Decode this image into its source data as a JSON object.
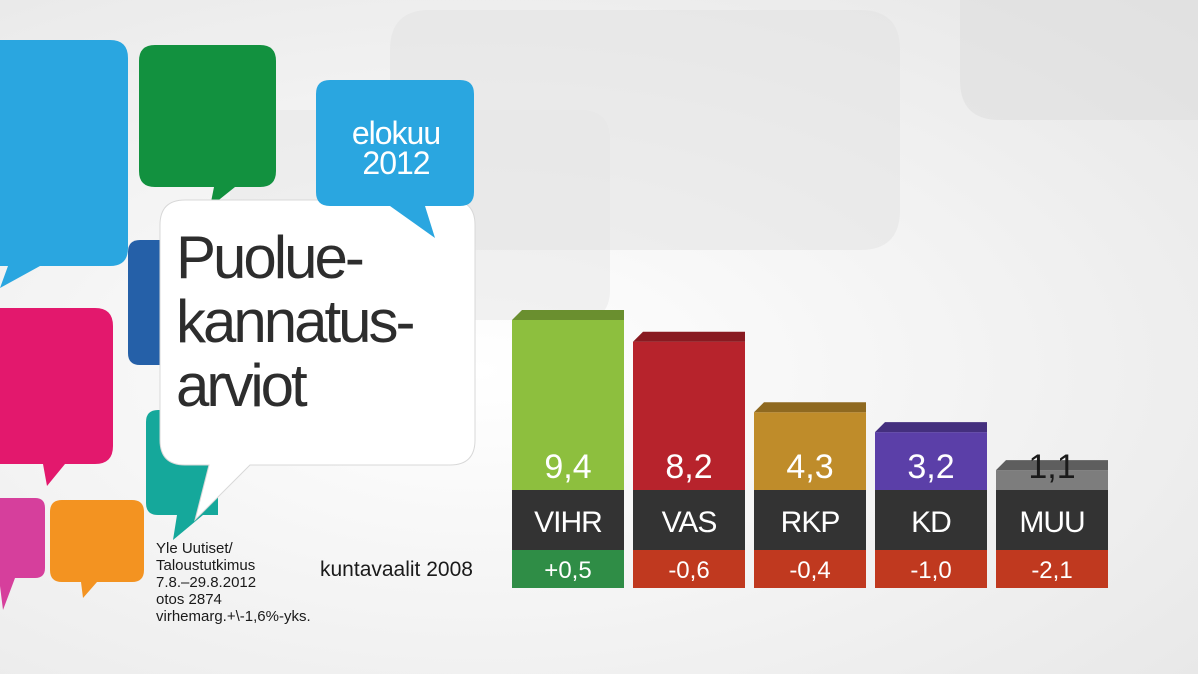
{
  "header": {
    "date_line1": "elokuu",
    "date_line2": "2012",
    "title_lines": [
      "Puolue-",
      "kannatus-",
      "arviot"
    ]
  },
  "source": {
    "lines": [
      "Yle Uutiset/",
      "Taloustutkimus",
      "7.8.–29.8.2012",
      "otos 2874",
      "virhemarg.+\\-1,6%-yks."
    ]
  },
  "reference_label": "kuntavaalit 2008",
  "colors": {
    "bubble_blue": "#2aa6e0",
    "bubble_green": "#12913f",
    "bubble_pink": "#e3186d",
    "bubble_magenta": "#d63f9c",
    "bubble_orange": "#f39321",
    "bubble_teal": "#15a89b",
    "bubble_darkblue": "#2560a8",
    "label_box": "#333333",
    "positive_change": "#2f8d46",
    "negative_change": "#c0391f"
  },
  "chart_data": {
    "type": "bar",
    "categories": [
      "VIHR",
      "VAS",
      "RKP",
      "KD",
      "MUU"
    ],
    "series": [
      {
        "values": [
          9.4,
          8.2,
          4.3,
          3.2,
          1.1
        ]
      }
    ],
    "value_labels": [
      "9,4",
      "8,2",
      "4,3",
      "3,2",
      "1,1"
    ],
    "change_labels": [
      "+0,5",
      "-0,6",
      "-0,4",
      "-1,0",
      "-2,1"
    ],
    "change_values": [
      0.5,
      -0.6,
      -0.4,
      -1.0,
      -2.1
    ],
    "bar_colors": [
      "#8dbf3e",
      "#b7232c",
      "#bf8c2a",
      "#5b3fa8",
      "#7d7d7d"
    ],
    "value_label_colors": [
      "#ffffff",
      "#ffffff",
      "#ffffff",
      "#ffffff",
      "#1a1a1a"
    ],
    "change_colors": [
      "#2f8d46",
      "#c0391f",
      "#c0391f",
      "#c0391f",
      "#c0391f"
    ],
    "ylim": [
      0,
      9.4
    ]
  }
}
